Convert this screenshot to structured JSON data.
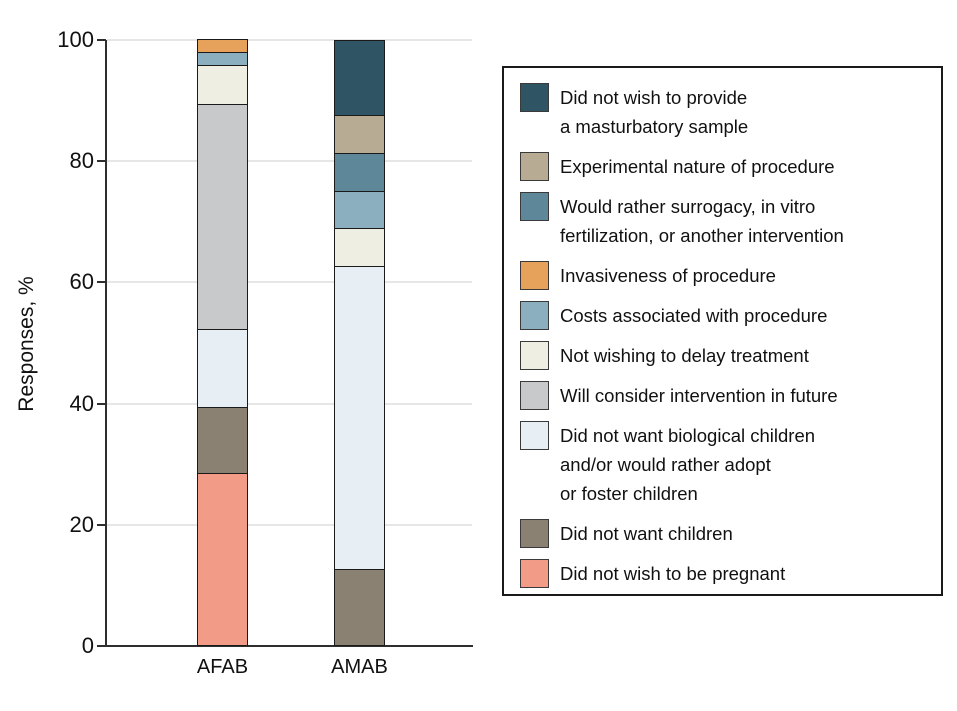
{
  "chart_data": {
    "type": "bar",
    "subtype": "stacked-vertical-100pct",
    "title": "",
    "ylabel": "Responses, %",
    "xlabel": "",
    "categories": [
      "AFAB",
      "AMAB"
    ],
    "ylim": [
      0,
      100
    ],
    "yticks": [
      0,
      20,
      40,
      60,
      80,
      100
    ],
    "grid": true,
    "legend_position": "right-box",
    "stack_order": "series listed from top of stack to bottom of stack",
    "series": [
      {
        "name": "Did not wish to provide a masturbatory sample",
        "label_lines": [
          "Did not wish to provide",
          "a masturbatory sample"
        ],
        "color": "#2F5565",
        "values": [
          0,
          12.5
        ]
      },
      {
        "name": "Experimental nature of procedure",
        "label_lines": [
          "Experimental nature of procedure"
        ],
        "color": "#B7AB93",
        "values": [
          0,
          6.25
        ]
      },
      {
        "name": "Would rather surrogacy, in vitro fertilization, or another intervention",
        "label_lines": [
          "Would rather surrogacy, in vitro",
          "fertilization, or another intervention"
        ],
        "color": "#5E8799",
        "values": [
          0,
          6.25
        ]
      },
      {
        "name": "Invasiveness of procedure",
        "label_lines": [
          "Invasiveness of procedure"
        ],
        "color": "#E6A15B",
        "values": [
          2.2,
          0
        ]
      },
      {
        "name": "Costs associated with procedure",
        "label_lines": [
          "Costs associated with procedure"
        ],
        "color": "#8CAFBF",
        "values": [
          2.2,
          6.25
        ]
      },
      {
        "name": "Not wishing to delay treatment",
        "label_lines": [
          "Not wishing to delay treatment"
        ],
        "color": "#EFEEE2",
        "values": [
          6.5,
          6.25
        ]
      },
      {
        "name": "Will consider intervention in future",
        "label_lines": [
          "Will consider intervention in future"
        ],
        "color": "#C8C9CB",
        "values": [
          37.0,
          0
        ]
      },
      {
        "name": "Did not want biological children and/or would rather adopt or foster children",
        "label_lines": [
          "Did not want biological children",
          "and/or would rather adopt",
          "or foster children"
        ],
        "color": "#E7EFF4",
        "values": [
          13.0,
          50.0
        ]
      },
      {
        "name": "Did not want children",
        "label_lines": [
          "Did not want children"
        ],
        "color": "#8A8173",
        "values": [
          10.9,
          12.5
        ]
      },
      {
        "name": "Did not wish to be pregnant",
        "label_lines": [
          "Did not wish to be pregnant"
        ],
        "color": "#F29C87",
        "values": [
          28.3,
          0
        ]
      }
    ]
  }
}
